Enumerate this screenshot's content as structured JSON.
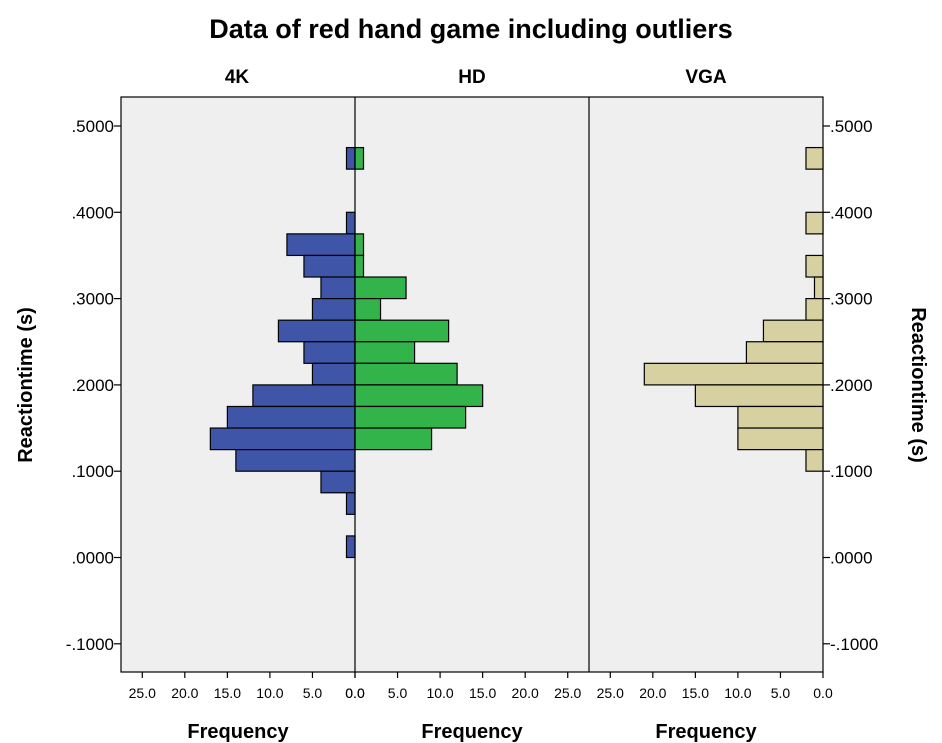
{
  "chart_data": {
    "type": "bar",
    "orientation": "horizontal-histogram",
    "title": "Data of red hand game including outliers",
    "ylabel": "Reactiontime (s)",
    "ylabel_right": "Reactiontime (s)",
    "ylim": [
      -0.1,
      0.5
    ],
    "y_ticks": [
      ".5000",
      ".4000",
      ".3000",
      ".2000",
      ".1000",
      ".0000",
      "-.1000"
    ],
    "xlim": [
      0,
      25
    ],
    "x_ticks": [
      "25.0",
      "20.0",
      "15.0",
      "10.0",
      "5.0",
      "0.0"
    ],
    "x_ticks_hd": [
      "0.0",
      "5.0",
      "10.0",
      "15.0",
      "20.0",
      "25.0"
    ],
    "xlabel": "Frequency",
    "grid": false,
    "panels": [
      {
        "name": "4K",
        "direction": "left",
        "color": "#3e55a8",
        "bins": [
          {
            "y": 0.4625,
            "count": 1
          },
          {
            "y": 0.3875,
            "count": 1
          },
          {
            "y": 0.3625,
            "count": 8
          },
          {
            "y": 0.3375,
            "count": 6
          },
          {
            "y": 0.3125,
            "count": 4
          },
          {
            "y": 0.2875,
            "count": 5
          },
          {
            "y": 0.2625,
            "count": 9
          },
          {
            "y": 0.2375,
            "count": 6
          },
          {
            "y": 0.2125,
            "count": 5
          },
          {
            "y": 0.1875,
            "count": 12
          },
          {
            "y": 0.1625,
            "count": 15
          },
          {
            "y": 0.1375,
            "count": 17
          },
          {
            "y": 0.1125,
            "count": 14
          },
          {
            "y": 0.0875,
            "count": 4
          },
          {
            "y": 0.0625,
            "count": 1
          },
          {
            "y": 0.0125,
            "count": 1
          }
        ]
      },
      {
        "name": "HD",
        "direction": "right",
        "color": "#32b44a",
        "bins": [
          {
            "y": 0.4625,
            "count": 1
          },
          {
            "y": 0.3625,
            "count": 1
          },
          {
            "y": 0.3375,
            "count": 1
          },
          {
            "y": 0.3125,
            "count": 6
          },
          {
            "y": 0.2875,
            "count": 3
          },
          {
            "y": 0.2625,
            "count": 11
          },
          {
            "y": 0.2375,
            "count": 7
          },
          {
            "y": 0.2125,
            "count": 12
          },
          {
            "y": 0.1875,
            "count": 15
          },
          {
            "y": 0.1625,
            "count": 13
          },
          {
            "y": 0.1375,
            "count": 9
          }
        ]
      },
      {
        "name": "VGA",
        "direction": "left",
        "color": "#d7d0a1",
        "bins": [
          {
            "y": 0.4625,
            "count": 2
          },
          {
            "y": 0.3875,
            "count": 2
          },
          {
            "y": 0.3375,
            "count": 2
          },
          {
            "y": 0.3125,
            "count": 1
          },
          {
            "y": 0.2875,
            "count": 2
          },
          {
            "y": 0.2625,
            "count": 7
          },
          {
            "y": 0.2375,
            "count": 9
          },
          {
            "y": 0.2125,
            "count": 21
          },
          {
            "y": 0.1875,
            "count": 15
          },
          {
            "y": 0.1625,
            "count": 10
          },
          {
            "y": 0.1375,
            "count": 10
          },
          {
            "y": 0.1125,
            "count": 2
          }
        ]
      }
    ],
    "colors": {
      "plot_background": "#efefef",
      "bar_outline": "#000000"
    }
  }
}
